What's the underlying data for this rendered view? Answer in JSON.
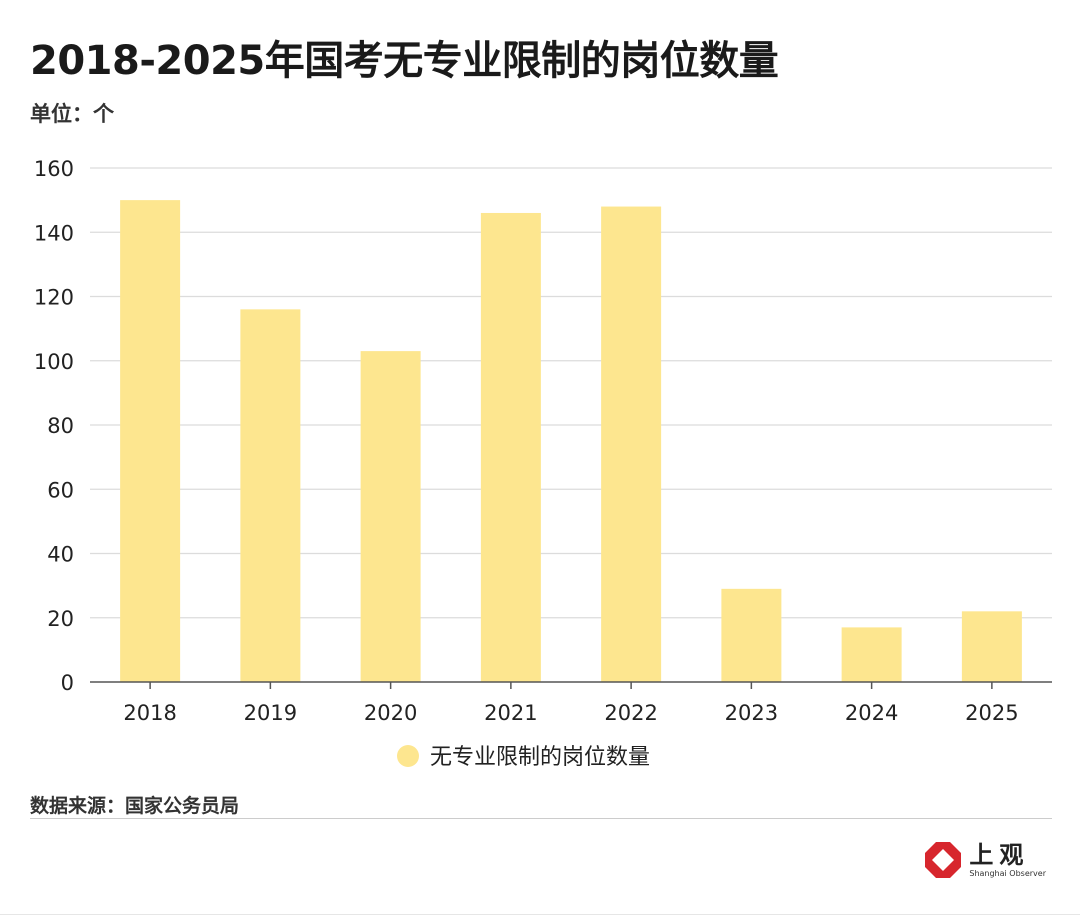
{
  "title": "2018-2025年国考无专业限制的岗位数量",
  "unit_label": "单位：个",
  "source": "数据来源：国家公务员局",
  "logo": {
    "cn": "上观",
    "en": "Shanghai Observer",
    "color": "#d7262d"
  },
  "chart_data": {
    "type": "bar",
    "title": "2018-2025年国考无专业限制的岗位数量",
    "xlabel": "",
    "ylabel": "单位：个",
    "categories": [
      "2018",
      "2019",
      "2020",
      "2021",
      "2022",
      "2023",
      "2024",
      "2025"
    ],
    "series": [
      {
        "name": "无专业限制的岗位数量",
        "values": [
          150,
          116,
          103,
          146,
          148,
          29,
          17,
          22
        ],
        "color": "#fde68f"
      }
    ],
    "ylim": [
      0,
      160
    ],
    "yticks": [
      0,
      20,
      40,
      60,
      80,
      100,
      120,
      140,
      160
    ],
    "grid": true,
    "legend_position": "bottom"
  }
}
